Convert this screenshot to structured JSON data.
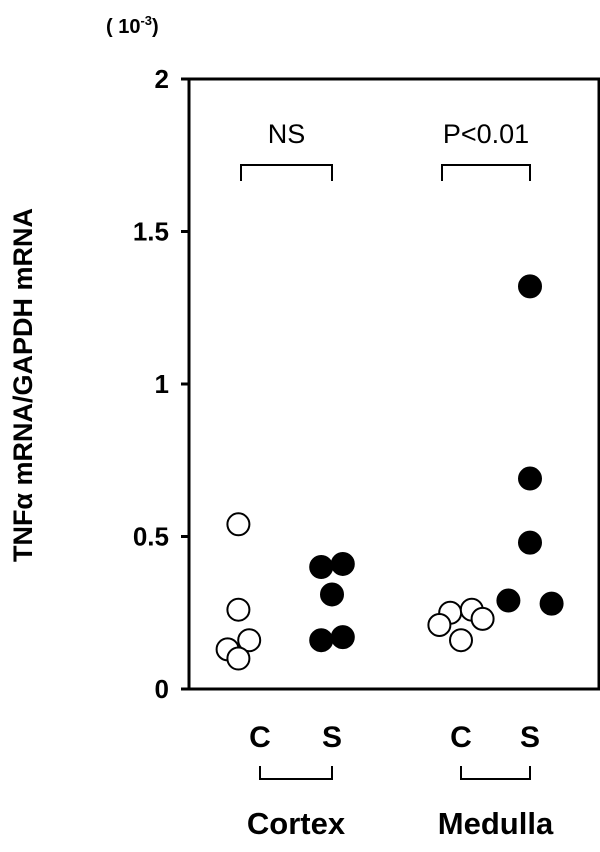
{
  "chart_data": {
    "type": "scatter",
    "ylabel": "TNFα mRNA/GAPDH mRNA",
    "y_multiplier": {
      "prefix": "( 10",
      "exponent": "-3",
      "suffix": ")"
    },
    "ylim": [
      0,
      2
    ],
    "yticks": [
      {
        "value": 0,
        "label": "0"
      },
      {
        "value": 0.5,
        "label": "0.5"
      },
      {
        "value": 1,
        "label": "1"
      },
      {
        "value": 1.5,
        "label": "1.5"
      },
      {
        "value": 2,
        "label": "2"
      }
    ],
    "groups": [
      {
        "name": "Cortex",
        "annotation": "NS",
        "conditions": [
          {
            "label": "C",
            "fill": "#ffffff",
            "points": [
              {
                "offset": -0.3,
                "y": 0.54
              },
              {
                "offset": -0.3,
                "y": 0.26
              },
              {
                "offset": -0.45,
                "y": 0.13
              },
              {
                "offset": -0.15,
                "y": 0.16
              },
              {
                "offset": -0.3,
                "y": 0.1
              }
            ]
          },
          {
            "label": "S",
            "fill": "#000000",
            "points": [
              {
                "offset": -0.15,
                "y": 0.4
              },
              {
                "offset": 0.15,
                "y": 0.41
              },
              {
                "offset": 0.0,
                "y": 0.31
              },
              {
                "offset": -0.15,
                "y": 0.16
              },
              {
                "offset": 0.15,
                "y": 0.17
              }
            ]
          }
        ]
      },
      {
        "name": "Medulla",
        "annotation": "P<0.01",
        "conditions": [
          {
            "label": "C",
            "fill": "#ffffff",
            "points": [
              {
                "offset": -0.15,
                "y": 0.25
              },
              {
                "offset": 0.15,
                "y": 0.26
              },
              {
                "offset": -0.3,
                "y": 0.21
              },
              {
                "offset": 0.3,
                "y": 0.23
              },
              {
                "offset": 0.0,
                "y": 0.16
              }
            ]
          },
          {
            "label": "S",
            "fill": "#000000",
            "points": [
              {
                "offset": 0.0,
                "y": 1.32
              },
              {
                "offset": 0.0,
                "y": 0.69
              },
              {
                "offset": 0.0,
                "y": 0.48
              },
              {
                "offset": -0.3,
                "y": 0.29
              },
              {
                "offset": 0.3,
                "y": 0.28
              }
            ]
          }
        ]
      }
    ]
  }
}
